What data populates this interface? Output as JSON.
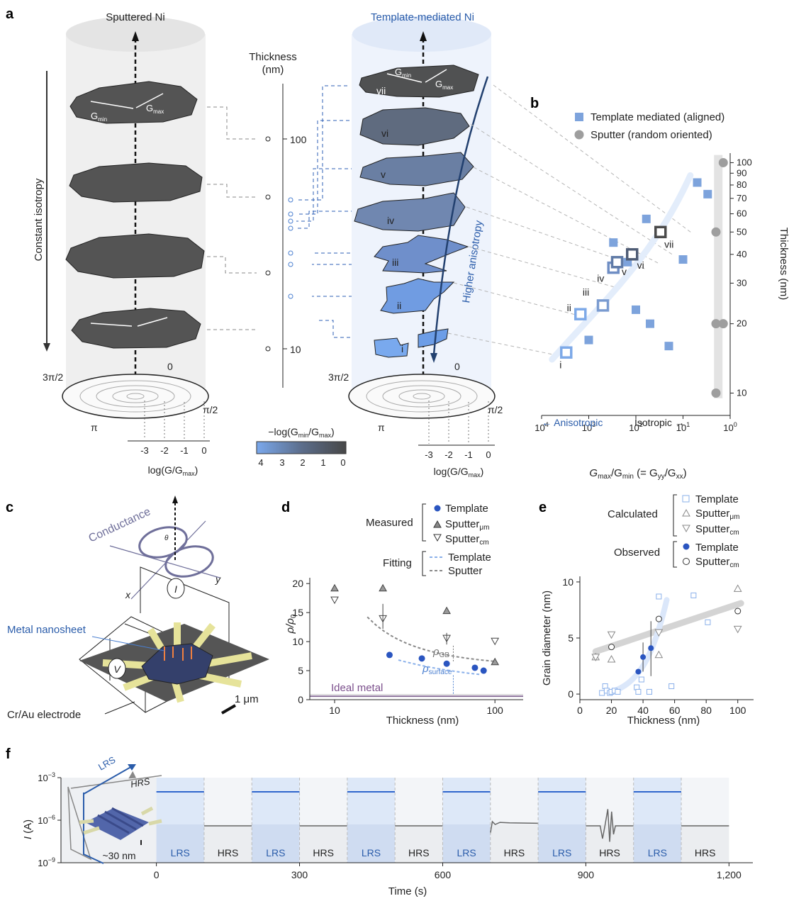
{
  "panels": {
    "a": "a",
    "b": "b",
    "c": "c",
    "d": "d",
    "e": "e",
    "f": "f"
  },
  "panel_a": {
    "left_title": "Sputtered Ni",
    "right_title": "Template-mediated Ni",
    "thickness_axis": {
      "title_line1": "Thickness",
      "title_line2": "(nm)",
      "ticks": [
        "100",
        "10"
      ]
    },
    "left_side_label": "Constant isotropy",
    "right_side_label": "Higher anisotropy",
    "gmin": "G",
    "gmin_sub": "min",
    "gmax": "G",
    "gmax_sub": "max",
    "angles": {
      "zero": "0",
      "half_pi": "π/2",
      "pi": "π",
      "three_half_pi": "3π/2"
    },
    "log_ticks": [
      "-3",
      "-2",
      "-1",
      "0"
    ],
    "log_label": "log(G/G",
    "log_label_sub": "max",
    "log_label_end": ")",
    "roman": [
      "i",
      "ii",
      "iii",
      "iv",
      "v",
      "vi",
      "vii"
    ],
    "colorbar": {
      "title": "−log(G",
      "title_sub1": "min",
      "title_mid": "/G",
      "title_sub2": "max",
      "title_end": ")",
      "ticks": [
        "4",
        "3",
        "2",
        "1",
        "0"
      ]
    }
  },
  "panel_b": {
    "legend": [
      {
        "label": "Template mediated (aligned)",
        "color": "#7da3dc"
      },
      {
        "label": "Sputter (random oriented)",
        "color": "#9e9e9e"
      }
    ],
    "xlabel_main": "G",
    "xlabel_sub1": "max",
    "xlabel_mid": "/G",
    "xlabel_sub2": "min",
    "xlabel_rest": " (= G",
    "xlabel_sub3": "yy",
    "xlabel_mid2": "/G",
    "xlabel_sub4": "xx",
    "xlabel_end": ")",
    "ylabel": "Thickness (nm)",
    "x_ticks": [
      {
        "base": "10",
        "exp": "4"
      },
      {
        "base": "10",
        "exp": "3"
      },
      {
        "base": "10",
        "exp": "2"
      },
      {
        "base": "10",
        "exp": "1"
      },
      {
        "base": "10",
        "exp": "0"
      }
    ],
    "y_ticks": [
      "100",
      "90",
      "80",
      "70",
      "60",
      "50",
      "40",
      "30",
      "20",
      "10"
    ],
    "anisotropic": "← Anisotropic",
    "isotropic": "Isotropic →"
  },
  "panel_c": {
    "conductance": "Conductance",
    "x": "x",
    "y": "y",
    "theta": "θ",
    "current": "I",
    "voltage": "V",
    "nanosheet": "Metal nanosheet",
    "electrode": "Cr/Au electrode",
    "scale": "1 μm"
  },
  "panel_d": {
    "legend_measured": "Measured",
    "legend_fitting": "Fitting",
    "items": [
      {
        "label": "Template",
        "sub": ""
      },
      {
        "label": "Sputter",
        "sub": "μm"
      },
      {
        "label": "Sputter",
        "sub": "cm"
      }
    ],
    "fit_items": [
      "Template",
      "Sputter"
    ],
    "ylabel": "ρ/ρ",
    "ylabel_sub": "0",
    "xlabel": "Thickness (nm)",
    "x_ticks": [
      "10",
      "100"
    ],
    "y_ticks": [
      "0",
      "5",
      "10",
      "15",
      "20"
    ],
    "ideal": "Ideal metal",
    "rho_gb": "ρ",
    "rho_gb_sub": "GB",
    "rho_s": "ρ",
    "rho_s_sub": "surface"
  },
  "panel_e": {
    "legend_calculated": "Calculated",
    "legend_observed": "Observed",
    "calc_items": [
      {
        "label": "Template",
        "sub": ""
      },
      {
        "label": "Sputter",
        "sub": "μm"
      },
      {
        "label": "Sputter",
        "sub": "cm"
      }
    ],
    "obs_items": [
      {
        "label": "Template",
        "sub": ""
      },
      {
        "label": "Sputter",
        "sub": "cm"
      }
    ],
    "ylabel": "Grain diameter (nm)",
    "xlabel": "Thickness (nm)",
    "x_ticks": [
      "0",
      "20",
      "40",
      "60",
      "80",
      "100"
    ],
    "y_ticks": [
      "0",
      "5",
      "10"
    ]
  },
  "panel_f": {
    "ylabel": "I",
    "ylabel_unit": " (A)",
    "xlabel": "Time (s)",
    "y_ticks": [
      {
        "base": "10",
        "exp": "−3"
      },
      {
        "base": "10",
        "exp": "−6"
      },
      {
        "base": "10",
        "exp": "−9"
      }
    ],
    "x_ticks": [
      "0",
      "300",
      "600",
      "900",
      "1,200"
    ],
    "states": [
      "LRS",
      "HRS",
      "LRS",
      "HRS",
      "LRS",
      "HRS",
      "LRS",
      "HRS",
      "LRS",
      "HRS",
      "LRS",
      "HRS"
    ],
    "inset_lrs": "LRS",
    "inset_hrs": "HRS",
    "inset_scale": "~30 nm"
  },
  "chart_data": [
    {
      "type": "scatter",
      "panel": "b",
      "xlabel": "Gmax/Gmin (= Gyy/Gxx)",
      "ylabel": "Thickness (nm)",
      "x_scale": "log reversed",
      "xlim": [
        10000,
        1
      ],
      "y_scale": "log",
      "ylim": [
        8,
        110
      ],
      "series": [
        {
          "name": "Template mediated (aligned)",
          "marker": "filled square",
          "x": [
            1000,
            300,
            150,
            100,
            60,
            50,
            20,
            10,
            5,
            3
          ],
          "y": [
            17,
            45,
            37,
            23,
            57,
            20,
            16,
            38,
            82,
            73
          ]
        },
        {
          "name": "Sputter (random oriented)",
          "marker": "filled circle",
          "x": [
            2,
            2,
            2,
            1.4,
            1.4
          ],
          "y": [
            20,
            50,
            10,
            100,
            20
          ],
          "note": ""
        },
        {
          "name": "",
          "marker": "open square",
          "labels": [
            "i",
            "ii",
            "iii",
            "iv",
            "v",
            "vi",
            "vii"
          ],
          "x": [
            3000,
            1500,
            500,
            300,
            250,
            120,
            30
          ],
          "y": [
            15,
            22,
            24,
            35,
            37,
            40,
            50
          ]
        }
      ]
    },
    {
      "type": "scatter",
      "panel": "d",
      "xlabel": "Thickness (nm)",
      "ylabel": "ρ/ρ0",
      "x_scale": "log",
      "xlim": [
        7,
        150
      ],
      "ylim": [
        0,
        21
      ],
      "series": [
        {
          "name": "Template",
          "marker": "filled circle",
          "x": [
            22,
            35,
            50,
            75,
            85
          ],
          "y": [
            7.7,
            7.1,
            6.2,
            5.5,
            5.0
          ]
        },
        {
          "name": "Sputter μm",
          "marker": "triangle up",
          "x": [
            10,
            20,
            50,
            100
          ],
          "y": [
            19.2,
            19.2,
            15.3,
            6.5
          ]
        },
        {
          "name": "Sputter cm",
          "marker": "triangle down",
          "x": [
            10,
            20,
            50,
            100
          ],
          "y": [
            17.2,
            14.0,
            10.6,
            10.1
          ]
        }
      ]
    },
    {
      "type": "scatter",
      "panel": "e",
      "xlabel": "Thickness (nm)",
      "ylabel": "Grain diameter (nm)",
      "xlim": [
        0,
        110
      ],
      "ylim": [
        -0.5,
        10.5
      ],
      "series": [
        {
          "name": "Template (calculated)",
          "marker": "open square",
          "x": [
            14,
            16,
            17,
            19,
            20,
            22,
            24,
            36,
            37,
            39,
            44,
            50,
            58,
            72,
            81
          ],
          "y": [
            0.1,
            0.7,
            0.3,
            0.1,
            0.2,
            0.3,
            0.2,
            0.6,
            0.2,
            1.3,
            0.2,
            8.7,
            0.7,
            8.8,
            6.4
          ]
        },
        {
          "name": "Sputter μm (calculated)",
          "marker": "triangle up",
          "x": [
            10,
            20,
            50,
            100
          ],
          "y": [
            3.3,
            3.1,
            3.5,
            9.4
          ]
        },
        {
          "name": "Sputter cm (calculated)",
          "marker": "triangle down",
          "x": [
            10,
            20,
            50,
            100
          ],
          "y": [
            3.3,
            5.3,
            5.5,
            5.8
          ]
        },
        {
          "name": "Template (observed)",
          "marker": "filled circle",
          "x": [
            37,
            40,
            45
          ],
          "y": [
            2.0,
            3.3,
            4.1
          ]
        },
        {
          "name": "Sputter cm (observed)",
          "marker": "open circle",
          "x": [
            20,
            50,
            100
          ],
          "y": [
            4.2,
            6.7,
            7.4
          ]
        }
      ]
    },
    {
      "type": "line",
      "panel": "f",
      "xlabel": "Time (s)",
      "ylabel": "I (A)",
      "y_scale": "log",
      "ylim": [
        1e-09,
        0.001
      ],
      "xlim": [
        -200,
        1250
      ],
      "segments": [
        {
          "state": "LRS",
          "t": [
            0,
            100
          ],
          "I": 0.0001
        },
        {
          "state": "HRS",
          "t": [
            100,
            200
          ],
          "I": 4e-07
        },
        {
          "state": "LRS",
          "t": [
            200,
            300
          ],
          "I": 0.0001
        },
        {
          "state": "HRS",
          "t": [
            300,
            400
          ],
          "I": 4e-07
        },
        {
          "state": "LRS",
          "t": [
            400,
            500
          ],
          "I": 0.0001
        },
        {
          "state": "HRS",
          "t": [
            500,
            600
          ],
          "I": 4e-07
        },
        {
          "state": "LRS",
          "t": [
            600,
            700
          ],
          "I": 0.0001
        },
        {
          "state": "HRS",
          "t": [
            700,
            800
          ],
          "I": 6e-07
        },
        {
          "state": "LRS",
          "t": [
            800,
            900
          ],
          "I": 0.0001
        },
        {
          "state": "HRS",
          "t": [
            900,
            1000
          ],
          "I": 4e-07
        },
        {
          "state": "LRS",
          "t": [
            1000,
            1100
          ],
          "I": 0.0001
        },
        {
          "state": "HRS",
          "t": [
            1100,
            1200
          ],
          "I": 4e-07
        }
      ]
    }
  ]
}
